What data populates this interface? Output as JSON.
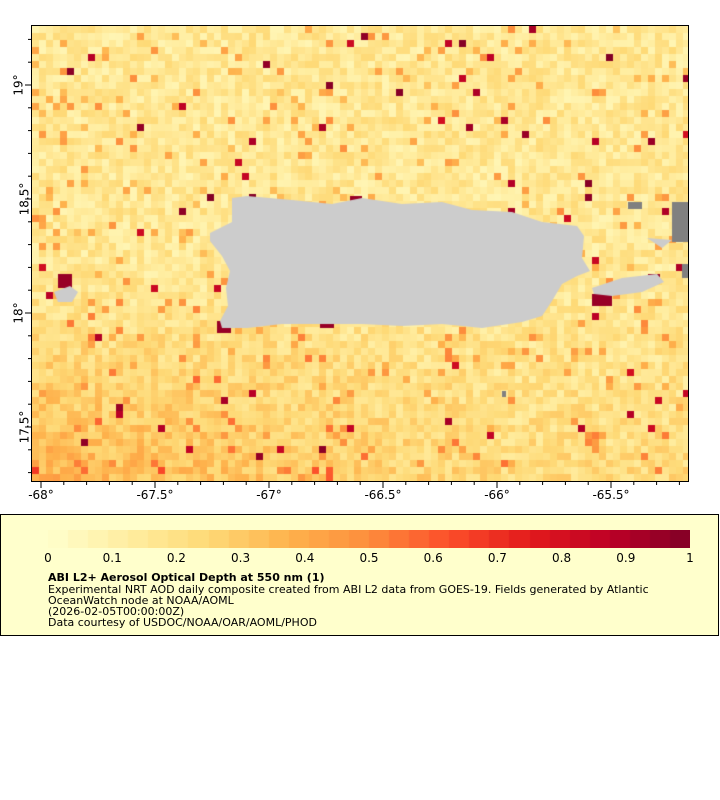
{
  "map": {
    "x_ticks": [
      "-68°",
      "-67.5°",
      "-67°",
      "-66.5°",
      "-66°",
      "-65.5°"
    ],
    "x_tick_values": [
      -68,
      -67.5,
      -67,
      -66.5,
      -66,
      -65.5
    ],
    "y_ticks": [
      "19°",
      "18.5°",
      "18°",
      "17.5°"
    ],
    "y_tick_values": [
      19,
      18.5,
      18,
      17.5
    ],
    "lon_range": [
      -68.04,
      -65.16
    ],
    "lat_range": [
      17.18,
      19.25
    ],
    "land_color": "#cccccc",
    "missing_color": "#808080",
    "palette": [
      "#ffffcc",
      "#ffeda0",
      "#fed976",
      "#feb24c",
      "#fd8d3c",
      "#fc4e2a",
      "#e31a1c",
      "#bd0026",
      "#800026"
    ]
  },
  "legend": {
    "colorbar_ticks": [
      "0",
      "0.1",
      "0.2",
      "0.3",
      "0.4",
      "0.5",
      "0.6",
      "0.7",
      "0.8",
      "0.9",
      "1"
    ],
    "range": [
      0,
      1
    ],
    "title": "ABI L2+ Aerosol Optical Depth at 550 nm (1)",
    "line1": "Experimental NRT AOD daily composite created from ABI L2 data from GOES-19. Fields generated by Atlantic",
    "line2": "OceanWatch node at NOAA/AOML",
    "line3": "(2026-02-05T00:00:00Z)",
    "line4": "Data courtesy of USDOC/NOAA/OAR/AOML/PHOD"
  }
}
